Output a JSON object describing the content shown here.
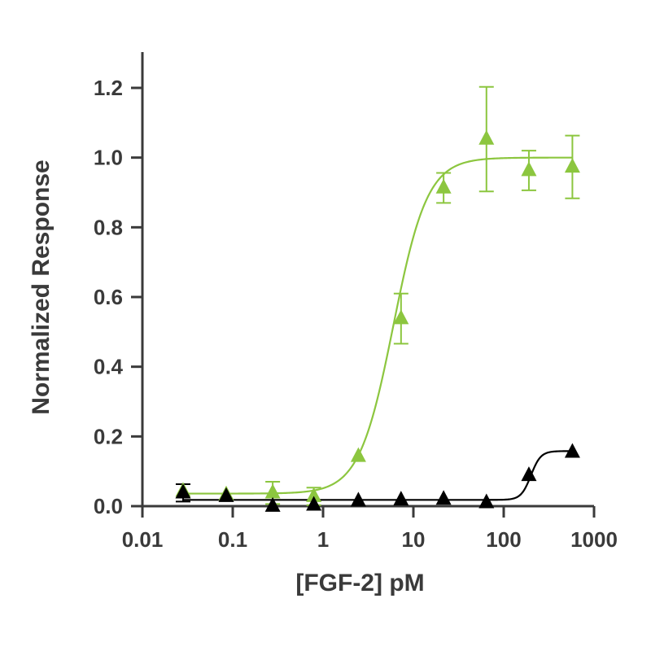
{
  "chart_data": {
    "type": "scatter",
    "xlabel": "[FGF-2] pM",
    "ylabel": "Normalized Response",
    "xscale": "log",
    "xlim": [
      0.01,
      1000
    ],
    "ylim": [
      0,
      1.3
    ],
    "x_ticks": [
      0.01,
      0.1,
      1,
      10,
      100,
      1000
    ],
    "x_tick_labels": [
      "0.01",
      "0.1",
      "1",
      "10",
      "100",
      "1000"
    ],
    "y_ticks": [
      0.0,
      0.2,
      0.4,
      0.6,
      0.8,
      1.0,
      1.2
    ],
    "y_tick_labels": [
      "0.0",
      "0.2",
      "0.4",
      "0.6",
      "0.8",
      "1.0",
      "1.2"
    ],
    "grid": false,
    "series": [
      {
        "color": "#8cc63f",
        "marker": "triangle",
        "x": [
          0.0282,
          0.0847,
          0.277,
          0.79,
          2.46,
          7.3,
          21.6,
          64.4,
          190,
          576
        ],
        "y": [
          0.043,
          0.033,
          0.038,
          0.028,
          0.143,
          0.538,
          0.913,
          1.053,
          0.963,
          0.973
        ],
        "err": [
          0.0,
          0.0,
          0.032,
          0.025,
          0.0,
          0.072,
          0.043,
          0.15,
          0.057,
          0.09
        ],
        "fit": {
          "bottom": 0.036,
          "top": 1.0,
          "ec50": 6.0,
          "hill": 2.3
        }
      },
      {
        "color": "#000000",
        "marker": "triangle",
        "x": [
          0.0282,
          0.0847,
          0.277,
          0.79,
          2.46,
          7.3,
          21.6,
          64.4,
          190,
          576
        ],
        "y": [
          0.038,
          0.028,
          0.0,
          0.003,
          0.015,
          0.018,
          0.02,
          0.01,
          0.088,
          0.155
        ],
        "err": [
          0.025,
          0.0,
          0.0,
          0.0,
          0.0,
          0.0,
          0.0,
          0.0,
          0.0,
          0.0
        ],
        "fit": {
          "bottom": 0.018,
          "top": 0.158,
          "ec50": 200,
          "hill": 8
        }
      }
    ]
  }
}
